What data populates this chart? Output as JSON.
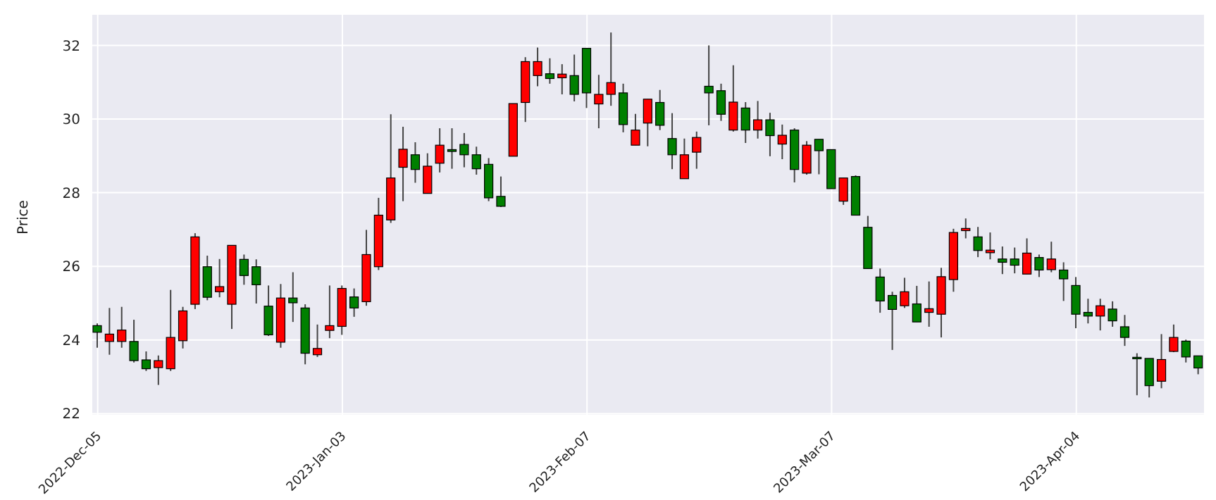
{
  "chart_data": {
    "type": "candlestick",
    "ylabel": "Price",
    "categories": [
      "2022-Dec-05",
      null,
      null,
      null,
      null,
      null,
      null,
      null,
      null,
      null,
      null,
      null,
      null,
      null,
      null,
      null,
      null,
      null,
      null,
      null,
      "2023-Jan-03",
      null,
      null,
      null,
      null,
      null,
      null,
      null,
      null,
      null,
      null,
      null,
      null,
      null,
      null,
      null,
      null,
      null,
      null,
      null,
      "2023-Feb-07",
      null,
      null,
      null,
      null,
      null,
      null,
      null,
      null,
      null,
      null,
      null,
      null,
      null,
      null,
      null,
      null,
      null,
      null,
      null,
      "2023-Mar-07",
      null,
      null,
      null,
      null,
      null,
      null,
      null,
      null,
      null,
      null,
      null,
      null,
      null,
      null,
      null,
      null,
      null,
      null,
      null,
      "2023-Apr-04",
      null,
      null,
      null,
      null,
      null,
      null,
      null,
      null,
      null,
      null
    ],
    "ohlc": [
      [
        24.39,
        24.45,
        23.79,
        24.21
      ],
      [
        23.96,
        24.87,
        23.6,
        24.16
      ],
      [
        23.96,
        24.9,
        23.79,
        24.27
      ],
      [
        23.96,
        24.55,
        23.39,
        23.44
      ],
      [
        23.46,
        23.69,
        23.16,
        23.22
      ],
      [
        23.25,
        23.58,
        22.78,
        23.44
      ],
      [
        23.22,
        25.36,
        23.16,
        24.07
      ],
      [
        23.98,
        24.9,
        23.77,
        24.79
      ],
      [
        24.97,
        26.9,
        24.84,
        26.8
      ],
      [
        25.99,
        26.29,
        25.08,
        25.16
      ],
      [
        25.31,
        26.2,
        25.16,
        25.45
      ],
      [
        24.97,
        26.57,
        24.3,
        26.57
      ],
      [
        26.19,
        26.32,
        25.5,
        25.75
      ],
      [
        25.99,
        26.19,
        24.99,
        25.5
      ],
      [
        24.92,
        25.48,
        24.11,
        24.14
      ],
      [
        23.94,
        25.52,
        23.79,
        25.14
      ],
      [
        25.14,
        25.84,
        24.49,
        25.01
      ],
      [
        24.87,
        24.97,
        23.34,
        23.64
      ],
      [
        23.6,
        24.42,
        23.54,
        23.77
      ],
      [
        24.26,
        25.48,
        24.05,
        24.39
      ],
      [
        24.37,
        25.48,
        24.14,
        25.4
      ],
      [
        25.17,
        25.4,
        24.63,
        24.87
      ],
      [
        25.04,
        26.99,
        24.93,
        26.32
      ],
      [
        25.99,
        27.86,
        25.9,
        27.39
      ],
      [
        27.26,
        30.13,
        27.18,
        28.4
      ],
      [
        28.69,
        29.79,
        27.77,
        29.18
      ],
      [
        29.03,
        29.37,
        28.27,
        28.63
      ],
      [
        27.98,
        29.07,
        27.98,
        28.72
      ],
      [
        28.8,
        29.75,
        28.55,
        29.29
      ],
      [
        29.17,
        29.75,
        28.65,
        29.12
      ],
      [
        29.31,
        29.62,
        28.69,
        29.03
      ],
      [
        29.03,
        29.25,
        28.49,
        28.65
      ],
      [
        28.77,
        28.94,
        27.77,
        27.86
      ],
      [
        27.9,
        28.44,
        27.61,
        27.63
      ],
      [
        28.99,
        30.42,
        28.99,
        30.42
      ],
      [
        30.45,
        31.68,
        29.92,
        31.56
      ],
      [
        31.18,
        31.94,
        30.89,
        31.56
      ],
      [
        31.23,
        31.65,
        30.96,
        31.1
      ],
      [
        31.12,
        31.49,
        30.67,
        31.22
      ],
      [
        31.18,
        31.75,
        30.48,
        30.67
      ],
      [
        31.92,
        31.92,
        30.3,
        30.71
      ],
      [
        30.41,
        31.2,
        29.75,
        30.67
      ],
      [
        30.67,
        32.35,
        30.36,
        30.99
      ],
      [
        30.71,
        30.96,
        29.64,
        29.85
      ],
      [
        29.29,
        30.14,
        29.29,
        29.7
      ],
      [
        29.89,
        30.54,
        29.26,
        30.54
      ],
      [
        30.45,
        30.79,
        29.7,
        29.83
      ],
      [
        29.47,
        30.16,
        28.64,
        29.03
      ],
      [
        28.38,
        29.47,
        28.38,
        29.03
      ],
      [
        29.1,
        29.66,
        28.65,
        29.5
      ],
      [
        30.89,
        32.0,
        29.83,
        30.71
      ],
      [
        30.77,
        30.96,
        29.95,
        30.13
      ],
      [
        29.7,
        31.46,
        29.66,
        30.46
      ],
      [
        30.3,
        30.46,
        29.35,
        29.7
      ],
      [
        29.7,
        30.49,
        29.47,
        29.98
      ],
      [
        29.98,
        30.17,
        28.99,
        29.55
      ],
      [
        29.32,
        29.85,
        28.91,
        29.56
      ],
      [
        29.7,
        29.75,
        28.28,
        28.63
      ],
      [
        28.53,
        29.4,
        28.49,
        29.29
      ],
      [
        29.45,
        29.45,
        28.5,
        29.14
      ],
      [
        29.17,
        29.17,
        28.11,
        28.11
      ],
      [
        27.77,
        28.4,
        27.67,
        28.4
      ],
      [
        28.44,
        28.47,
        27.39,
        27.39
      ],
      [
        27.06,
        27.37,
        25.94,
        25.94
      ],
      [
        25.71,
        25.94,
        24.74,
        25.06
      ],
      [
        25.21,
        25.31,
        23.73,
        24.83
      ],
      [
        24.93,
        25.69,
        24.87,
        25.31
      ],
      [
        24.98,
        25.47,
        24.49,
        24.49
      ],
      [
        24.75,
        25.59,
        24.36,
        24.85
      ],
      [
        24.7,
        25.96,
        24.07,
        25.72
      ],
      [
        25.64,
        27.02,
        25.31,
        26.92
      ],
      [
        26.97,
        27.3,
        26.76,
        27.03
      ],
      [
        26.8,
        27.07,
        26.25,
        26.43
      ],
      [
        26.37,
        26.92,
        26.19,
        26.44
      ],
      [
        26.2,
        26.54,
        25.79,
        26.11
      ],
      [
        26.2,
        26.51,
        25.81,
        26.03
      ],
      [
        25.79,
        26.76,
        25.79,
        26.36
      ],
      [
        26.24,
        26.32,
        25.71,
        25.9
      ],
      [
        25.91,
        26.67,
        25.84,
        26.2
      ],
      [
        25.9,
        26.11,
        25.06,
        25.66
      ],
      [
        25.48,
        25.71,
        24.32,
        24.7
      ],
      [
        24.75,
        25.12,
        24.45,
        24.65
      ],
      [
        24.65,
        25.12,
        24.26,
        24.93
      ],
      [
        24.84,
        25.05,
        24.36,
        24.52
      ],
      [
        24.36,
        24.68,
        23.84,
        24.07
      ],
      [
        23.53,
        23.64,
        22.5,
        23.49
      ],
      [
        23.5,
        23.5,
        22.44,
        22.76
      ],
      [
        22.88,
        24.16,
        22.69,
        23.47
      ],
      [
        23.69,
        24.42,
        23.67,
        24.07
      ],
      [
        23.97,
        24.01,
        23.39,
        23.54
      ],
      [
        23.57,
        23.57,
        23.07,
        23.24
      ]
    ],
    "colors": [
      "#008000",
      "#ff0000",
      "#ff0000",
      "#008000",
      "#008000",
      "#ff0000",
      "#ff0000",
      "#ff0000",
      "#ff0000",
      "#008000",
      "#ff0000",
      "#ff0000",
      "#008000",
      "#008000",
      "#008000",
      "#ff0000",
      "#008000",
      "#008000",
      "#ff0000",
      "#ff0000",
      "#ff0000",
      "#008000",
      "#ff0000",
      "#ff0000",
      "#ff0000",
      "#ff0000",
      "#008000",
      "#ff0000",
      "#ff0000",
      "#008000",
      "#008000",
      "#008000",
      "#008000",
      "#008000",
      "#ff0000",
      "#ff0000",
      "#ff0000",
      "#008000",
      "#ff0000",
      "#008000",
      "#008000",
      "#ff0000",
      "#ff0000",
      "#008000",
      "#ff0000",
      "#ff0000",
      "#008000",
      "#008000",
      "#ff0000",
      "#ff0000",
      "#008000",
      "#008000",
      "#ff0000",
      "#008000",
      "#ff0000",
      "#008000",
      "#ff0000",
      "#008000",
      "#ff0000",
      "#008000",
      "#008000",
      "#ff0000",
      "#008000",
      "#008000",
      "#008000",
      "#008000",
      "#ff0000",
      "#008000",
      "#ff0000",
      "#ff0000",
      "#ff0000",
      "#ff0000",
      "#008000",
      "#ff0000",
      "#008000",
      "#008000",
      "#ff0000",
      "#008000",
      "#ff0000",
      "#008000",
      "#008000",
      "#008000",
      "#ff0000",
      "#008000",
      "#008000",
      "#008000",
      "#008000",
      "#ff0000",
      "#ff0000",
      "#008000",
      "#008000"
    ],
    "ylim": [
      21.95,
      32.85
    ],
    "yticks": [
      22,
      24,
      26,
      28,
      30,
      32
    ],
    "grid": true
  }
}
